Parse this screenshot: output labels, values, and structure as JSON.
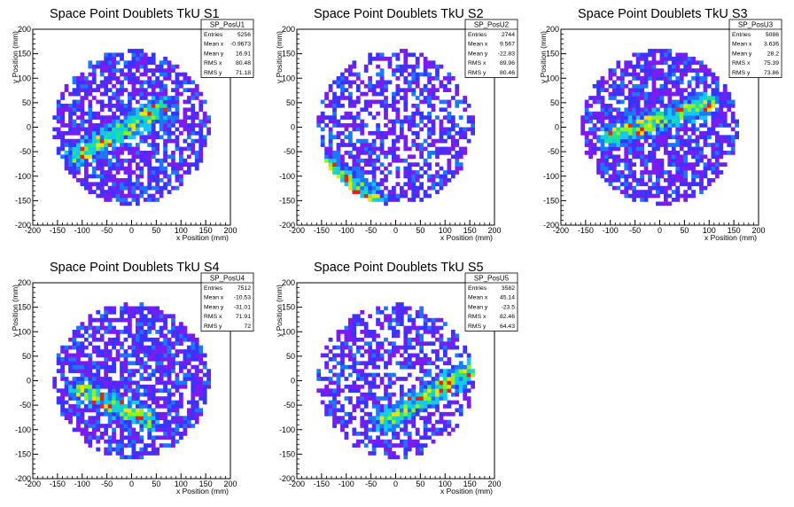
{
  "chart_data": [
    {
      "type": "heatmap",
      "title": "Space Point Doublets TkU S1",
      "xlabel": "x Position (mm)",
      "ylabel": "y Position (mm)",
      "xlim": [
        -200,
        200
      ],
      "ylim": [
        -200,
        200
      ],
      "xticks": [
        -200,
        -150,
        -100,
        -50,
        0,
        50,
        100,
        150,
        200
      ],
      "yticks": [
        -200,
        -150,
        -100,
        -50,
        0,
        50,
        100,
        150,
        200
      ],
      "stats": {
        "name": "SP_PosU1",
        "rows": [
          {
            "label": "Entries",
            "value": "5256"
          },
          {
            "label": "Mean x",
            "value": "-0.9673"
          },
          {
            "label": "Mean y",
            "value": "16.91"
          },
          {
            "label": "RMS x",
            "value": "80.48"
          },
          {
            "label": "RMS y",
            "value": "71.18"
          }
        ]
      },
      "hotspot": {
        "from": [
          -110,
          -60
        ],
        "to": [
          60,
          40
        ]
      }
    },
    {
      "type": "heatmap",
      "title": "Space Point Doublets TkU S2",
      "xlabel": "x Position (mm)",
      "ylabel": "y Position (mm)",
      "xlim": [
        -200,
        200
      ],
      "ylim": [
        -200,
        200
      ],
      "xticks": [
        -200,
        -150,
        -100,
        -50,
        0,
        50,
        100,
        150,
        200
      ],
      "yticks": [
        -200,
        -150,
        -100,
        -50,
        0,
        50,
        100,
        150,
        200
      ],
      "stats": {
        "name": "SP_PosU2",
        "rows": [
          {
            "label": "Entries",
            "value": "2744"
          },
          {
            "label": "Mean x",
            "value": "9.567"
          },
          {
            "label": "Mean y",
            "value": "-22.83"
          },
          {
            "label": "RMS x",
            "value": "89.96"
          },
          {
            "label": "RMS y",
            "value": "80.46"
          }
        ]
      },
      "hotspot": {
        "from": [
          -140,
          -80
        ],
        "to": [
          -40,
          -150
        ]
      }
    },
    {
      "type": "heatmap",
      "title": "Space Point Doublets TkU S3",
      "xlabel": "x Position (mm)",
      "ylabel": "y Position (mm)",
      "xlim": [
        -200,
        200
      ],
      "ylim": [
        -200,
        200
      ],
      "xticks": [
        -200,
        -150,
        -100,
        -50,
        0,
        50,
        100,
        150,
        200
      ],
      "yticks": [
        -200,
        -150,
        -100,
        -50,
        0,
        50,
        100,
        150,
        200
      ],
      "stats": {
        "name": "SP_PosU3",
        "rows": [
          {
            "label": "Entries",
            "value": "5086"
          },
          {
            "label": "Mean x",
            "value": "3.636"
          },
          {
            "label": "Mean y",
            "value": "28.2"
          },
          {
            "label": "RMS x",
            "value": "75.39"
          },
          {
            "label": "RMS y",
            "value": "73.86"
          }
        ]
      },
      "hotspot": {
        "from": [
          -100,
          -20
        ],
        "to": [
          100,
          50
        ]
      }
    },
    {
      "type": "heatmap",
      "title": "Space Point Doublets TkU S4",
      "xlabel": "x Position (mm)",
      "ylabel": "y Position (mm)",
      "xlim": [
        -200,
        200
      ],
      "ylim": [
        -200,
        200
      ],
      "xticks": [
        -200,
        -150,
        -100,
        -50,
        0,
        50,
        100,
        150,
        200
      ],
      "yticks": [
        -200,
        -150,
        -100,
        -50,
        0,
        50,
        100,
        150,
        200
      ],
      "stats": {
        "name": "SP_PosU4",
        "rows": [
          {
            "label": "Entries",
            "value": "7512"
          },
          {
            "label": "Mean x",
            "value": "-10.53"
          },
          {
            "label": "Mean y",
            "value": "-31.01"
          },
          {
            "label": "RMS x",
            "value": "71.91"
          },
          {
            "label": "RMS y",
            "value": "72"
          }
        ]
      },
      "hotspot": {
        "from": [
          -100,
          -20
        ],
        "to": [
          30,
          -80
        ]
      }
    },
    {
      "type": "heatmap",
      "title": "Space Point Doublets TkU S5",
      "xlabel": "x Position (mm)",
      "ylabel": "y Position (mm)",
      "xlim": [
        -200,
        200
      ],
      "ylim": [
        -200,
        200
      ],
      "xticks": [
        -200,
        -150,
        -100,
        -50,
        0,
        50,
        100,
        150,
        200
      ],
      "yticks": [
        -200,
        -150,
        -100,
        -50,
        0,
        50,
        100,
        150,
        200
      ],
      "stats": {
        "name": "SP_PosU5",
        "rows": [
          {
            "label": "Entries",
            "value": "3582"
          },
          {
            "label": "Mean x",
            "value": "45.14"
          },
          {
            "label": "Mean y",
            "value": "-23.5"
          },
          {
            "label": "RMS x",
            "value": "82.46"
          },
          {
            "label": "RMS y",
            "value": "64.43"
          }
        ]
      },
      "hotspot": {
        "from": [
          -20,
          -80
        ],
        "to": [
          150,
          20
        ]
      }
    }
  ]
}
